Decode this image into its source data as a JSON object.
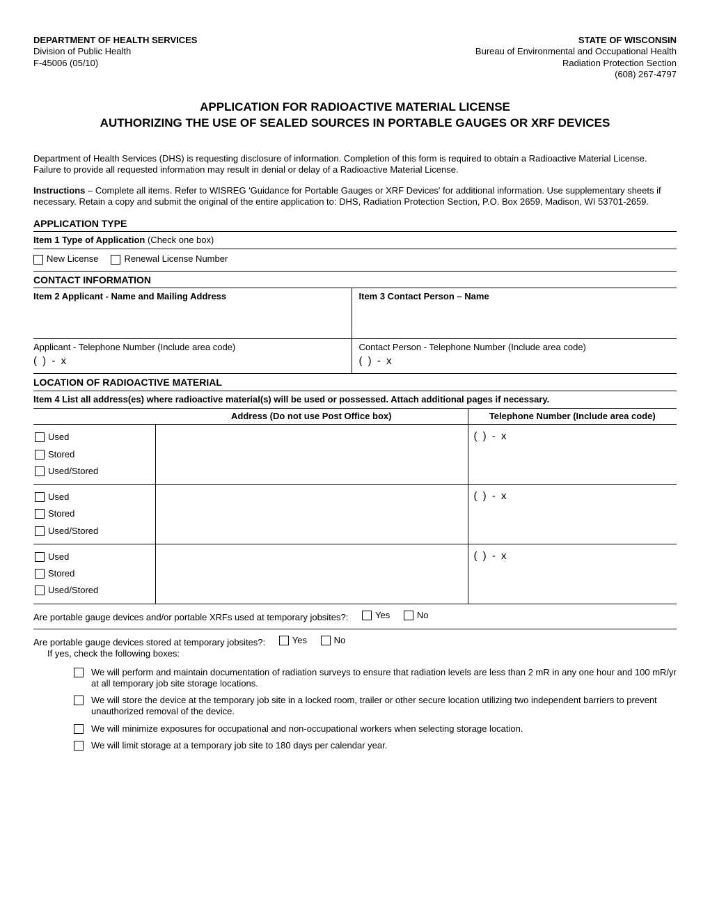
{
  "header": {
    "left": {
      "dept": "DEPARTMENT OF HEALTH SERVICES",
      "division": "Division of Public Health",
      "form_number": "F-45006 (05/10)"
    },
    "right": {
      "state": "STATE OF WISCONSIN",
      "bureau": "Bureau of Environmental and Occupational Health",
      "section_name": "Radiation Protection Section",
      "phone": "(608) 267-4797"
    }
  },
  "title_line1": "APPLICATION FOR RADIOACTIVE MATERIAL LICENSE",
  "title_line2": "AUTHORIZING THE USE OF SEALED SOURCES IN PORTABLE GAUGES OR XRF DEVICES",
  "intro_para": "Department of Health Services (DHS) is requesting disclosure of information. Completion of this form is required to obtain a Radioactive Material License.   Failure to provide all requested information may result in denial or delay of a Radioactive Material License.",
  "instructions_label": "Instructions",
  "instructions_text": " – Complete all items.  Refer to WISREG 'Guidance for Portable Gauges or XRF Devices' for additional information.  Use supplementary sheets if necessary.  Retain a copy and submit the original of the entire application to: DHS, Radiation Protection Section, P.O. Box 2659, Madison, WI 53701-2659.",
  "sections": {
    "application_type": {
      "heading": "APPLICATION TYPE",
      "item1_label": "Item 1  Type of Application",
      "item1_hint": "  (Check one box)",
      "new_license": "New License",
      "renewal": "Renewal License Number"
    },
    "contact": {
      "heading": "CONTACT INFORMATION",
      "item2": "Item 2  Applicant - Name and Mailing Address",
      "item3": "Item 3  Contact Person – Name",
      "applicant_phone_label": "Applicant - Telephone Number  (Include area code)",
      "contact_phone_label": "Contact Person - Telephone Number  (Include area code)",
      "phone_template": "(       )      -           x"
    },
    "location": {
      "heading": "LOCATION OF RADIOACTIVE MATERIAL",
      "item4": "Item 4  List all address(es) where radioactive material(s) will be used or possessed.  Attach additional pages if necessary.",
      "col_addr": "Address (Do not use Post Office box)",
      "col_phone": "Telephone Number (Include area code)",
      "used": "Used",
      "stored": "Stored",
      "used_stored": "Used/Stored",
      "phone_template": "(       )      -           x"
    },
    "questions": {
      "q1": "Are portable gauge devices and/or portable XRFs used at temporary jobsites?:",
      "q2": "Are portable gauge devices stored at temporary jobsites?:",
      "q2_sub": "If yes, check the following boxes:",
      "yes": "Yes",
      "no": "No",
      "checks": [
        "We will perform and maintain documentation of radiation surveys to ensure that radiation levels are less than 2 mR in any one hour and 100 mR/yr at all temporary job site storage locations.",
        "We will store the device at the temporary job site in a locked room, trailer or other secure location utilizing two independent barriers to prevent unauthorized removal of the device.",
        "We will minimize exposures for occupational and non-occupational workers when selecting storage location.",
        "We will limit storage at a temporary job site to 180 days per calendar year."
      ]
    }
  }
}
